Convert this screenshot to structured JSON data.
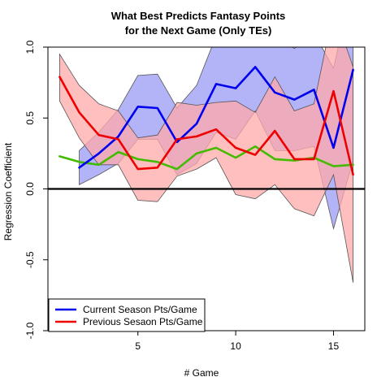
{
  "chart_data": {
    "type": "line",
    "title": "What Best Predicts Fantasy Points",
    "subtitle": "for the Next Game (Only TEs)",
    "xlabel": "# Game",
    "ylabel": "Regression Coefficient",
    "xlim": [
      0.4,
      16.6
    ],
    "ylim": [
      -1.0,
      1.0
    ],
    "x_ticks": [
      5,
      10,
      15
    ],
    "y_ticks": [
      -1.0,
      -0.5,
      0.0,
      0.5,
      1.0
    ],
    "x_tick_labels": [
      "5",
      "10",
      "15"
    ],
    "y_tick_labels": [
      "-1.0",
      "-0.5",
      "0.0",
      "0.5",
      "1.0"
    ],
    "grid": false,
    "legend_position": "bottom-left",
    "reference_line_y": 0,
    "series": [
      {
        "name": "Current Season Pts/Game",
        "color": "#0000ee",
        "band_fill": "#9a9af5",
        "x": [
          2,
          3,
          4,
          5,
          6,
          7,
          8,
          9,
          10,
          11,
          12,
          13,
          14,
          15,
          16
        ],
        "values": [
          0.15,
          0.25,
          0.37,
          0.58,
          0.57,
          0.33,
          0.46,
          0.74,
          0.71,
          0.86,
          0.68,
          0.63,
          0.7,
          0.29,
          0.84
        ],
        "lower": [
          0.03,
          0.1,
          0.18,
          0.35,
          0.35,
          0.1,
          0.18,
          0.4,
          0.35,
          0.55,
          0.27,
          0.27,
          0.3,
          -0.28,
          0.2
        ],
        "upper": [
          0.27,
          0.4,
          0.56,
          0.8,
          0.81,
          0.57,
          0.73,
          1.08,
          1.07,
          1.14,
          1.08,
          0.99,
          1.1,
          0.85,
          1.48
        ]
      },
      {
        "name": "Previous Sesaon Pts/Game",
        "color": "#ee0000",
        "band_fill": "#ffaaaa",
        "x": [
          1,
          2,
          3,
          4,
          5,
          6,
          7,
          8,
          9,
          10,
          11,
          12,
          13,
          14,
          15,
          16
        ],
        "values": [
          0.79,
          0.54,
          0.38,
          0.35,
          0.14,
          0.15,
          0.35,
          0.37,
          0.42,
          0.29,
          0.24,
          0.41,
          0.21,
          0.21,
          0.69,
          0.1
        ],
        "lower": [
          0.62,
          0.36,
          0.17,
          0.17,
          -0.08,
          -0.09,
          0.09,
          0.14,
          0.22,
          -0.04,
          -0.07,
          0.03,
          -0.14,
          -0.19,
          0.1,
          -0.66
        ],
        "upper": [
          0.95,
          0.73,
          0.6,
          0.55,
          0.36,
          0.38,
          0.61,
          0.59,
          0.61,
          0.62,
          0.54,
          0.79,
          0.55,
          0.6,
          1.26,
          0.86
        ]
      },
      {
        "color": "#44bb00",
        "x": [
          1,
          2,
          3,
          4,
          5,
          6,
          7,
          8,
          9,
          10,
          11,
          12,
          13,
          14,
          15,
          16
        ],
        "values": [
          0.23,
          0.19,
          0.17,
          0.26,
          0.21,
          0.19,
          0.14,
          0.25,
          0.29,
          0.22,
          0.3,
          0.21,
          0.2,
          0.22,
          0.16,
          0.17
        ]
      }
    ]
  }
}
